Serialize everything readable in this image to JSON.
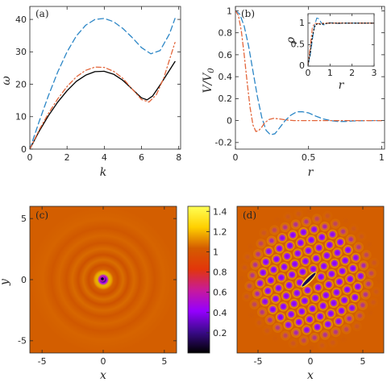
{
  "chart_data": [
    {
      "panel": "(a)",
      "type": "line",
      "xlabel": "k",
      "ylabel": "ω",
      "xlim": [
        0,
        8.1
      ],
      "ylim": [
        0,
        44
      ],
      "xticks": [
        0,
        2,
        4,
        6,
        8
      ],
      "yticks": [
        0,
        10,
        20,
        30,
        40
      ],
      "colors": {
        "black": "#000000",
        "blue": "#2b86c6",
        "orange": "#e3663b"
      },
      "series": [
        {
          "style": "solid",
          "color": "black",
          "x": [
            0,
            0.5,
            1,
            1.5,
            2,
            2.5,
            3,
            3.5,
            4,
            4.5,
            5,
            5.5,
            6,
            6.3,
            6.6,
            7,
            7.5,
            7.8
          ],
          "y": [
            0,
            5.5,
            10.3,
            14.5,
            18,
            20.9,
            22.8,
            23.9,
            24,
            23.1,
            21.2,
            18.5,
            15.8,
            15.2,
            16.4,
            19.8,
            24.3,
            27
          ]
        },
        {
          "style": "dash",
          "color": "blue",
          "x": [
            0,
            0.5,
            1,
            1.5,
            2,
            2.5,
            3,
            3.5,
            4,
            4.5,
            5,
            5.5,
            6,
            6.5,
            7,
            7.5,
            7.8
          ],
          "y": [
            0,
            8.5,
            16.5,
            23.8,
            30,
            34.9,
            38.2,
            40,
            40.3,
            39.3,
            37.2,
            34.4,
            31.3,
            29.4,
            30.4,
            35.5,
            40.3
          ]
        },
        {
          "style": "dashdot",
          "color": "orange",
          "x": [
            0,
            0.5,
            1,
            1.5,
            2,
            2.5,
            3,
            3.5,
            4,
            4.5,
            5,
            5.5,
            6,
            6.4,
            6.8,
            7.2,
            7.5,
            7.8
          ],
          "y": [
            0,
            5.9,
            11,
            15.5,
            19.3,
            22.3,
            24.3,
            25.3,
            25.2,
            24,
            21.8,
            18.5,
            15.3,
            14.5,
            16.8,
            22,
            27.5,
            32.9
          ]
        }
      ]
    },
    {
      "panel": "(b)",
      "type": "line",
      "xlabel": "r",
      "ylabel": "V/V0",
      "ylabel_main": "V/V",
      "ylabel_sub": "0",
      "xlim": [
        0,
        1.02
      ],
      "ylim": [
        -0.26,
        1.04
      ],
      "xticks": [
        0,
        0.5,
        1
      ],
      "yticks": [
        -0.2,
        0,
        0.2,
        0.4,
        0.6,
        0.8,
        1
      ],
      "series": [
        {
          "style": "dash",
          "color": "blue",
          "x": [
            0,
            0.03,
            0.06,
            0.09,
            0.12,
            0.15,
            0.18,
            0.21,
            0.24,
            0.27,
            0.3,
            0.34,
            0.38,
            0.42,
            0.46,
            0.5,
            0.55,
            0.6,
            0.65,
            0.7,
            0.75,
            0.8,
            0.9,
            1.0
          ],
          "y": [
            1,
            0.97,
            0.86,
            0.68,
            0.45,
            0.22,
            0.03,
            -0.09,
            -0.13,
            -0.12,
            -0.07,
            0,
            0.05,
            0.08,
            0.08,
            0.07,
            0.04,
            0.015,
            0,
            -0.008,
            -0.008,
            -0.004,
            0,
            0
          ]
        },
        {
          "style": "dashdot",
          "color": "orange",
          "x": [
            0,
            0.02,
            0.04,
            0.06,
            0.08,
            0.1,
            0.12,
            0.14,
            0.16,
            0.18,
            0.2,
            0.23,
            0.26,
            0.3,
            0.35,
            0.4,
            0.5,
            0.6,
            0.8,
            1.0
          ],
          "y": [
            1,
            0.96,
            0.82,
            0.6,
            0.35,
            0.12,
            -0.04,
            -0.1,
            -0.09,
            -0.06,
            -0.02,
            0.01,
            0.02,
            0.015,
            0.005,
            0,
            0,
            0,
            0,
            0
          ]
        }
      ],
      "inset": {
        "xlabel": "r",
        "ylabel": "ρ",
        "xlim": [
          0,
          3
        ],
        "ylim": [
          0,
          1.22
        ],
        "xticks": [
          0,
          1,
          2,
          3
        ],
        "yticks": [
          0,
          0.5,
          1
        ],
        "series": [
          {
            "style": "dash",
            "color": "blue",
            "x": [
              0,
              0.1,
              0.2,
              0.3,
              0.4,
              0.5,
              0.6,
              0.7,
              0.8,
              0.9,
              1.0,
              1.2,
              1.4,
              1.6,
              1.8,
              2.0,
              2.5,
              3.0
            ],
            "y": [
              0.02,
              0.25,
              0.62,
              0.95,
              1.12,
              1.1,
              1.01,
              0.96,
              0.97,
              1.0,
              1.01,
              1.0,
              0.99,
              1.0,
              1.0,
              1.0,
              1.0,
              1.0
            ]
          },
          {
            "style": "dashdot",
            "color": "orange",
            "x": [
              0,
              0.1,
              0.2,
              0.3,
              0.4,
              0.5,
              0.6,
              0.8,
              1.0,
              1.5,
              2.0,
              3.0
            ],
            "y": [
              0.02,
              0.45,
              0.9,
              1.0,
              0.99,
              0.99,
              1.0,
              1.0,
              1.0,
              1.0,
              1.0,
              1.0
            ]
          },
          {
            "style": "dot",
            "color": "black",
            "x": [
              0,
              0.1,
              0.2,
              0.3,
              0.4,
              0.5,
              0.6,
              0.7,
              0.8,
              1.0,
              1.5,
              2.0,
              3.0
            ],
            "y": [
              0.02,
              0.3,
              0.7,
              0.92,
              0.98,
              0.98,
              0.97,
              0.98,
              0.99,
              1.0,
              1.0,
              1.0,
              1.0
            ]
          }
        ]
      }
    },
    {
      "panel": "(c)",
      "type": "heatmap",
      "xlabel": "x",
      "ylabel": "y",
      "xlim": [
        -6,
        6
      ],
      "ylim": [
        -6,
        6
      ],
      "xticks": [
        -5,
        0,
        5
      ],
      "yticks": [
        -5,
        0,
        5
      ],
      "background_value": 1.0,
      "features": "density hole at origin (value ~0) surrounded by bright ring and faint concentric ripples"
    },
    {
      "panel": "colorbar",
      "type": "colorbar",
      "range": [
        0,
        1.45
      ],
      "ticks": [
        0.2,
        0.4,
        0.6,
        0.8,
        1,
        1.2,
        1.4
      ],
      "colors": [
        "#000000",
        "#3a0a8a",
        "#9500ff",
        "#c81a9a",
        "#e2360a",
        "#d45c00",
        "#ffd000",
        "#ffff55"
      ]
    },
    {
      "panel": "(d)",
      "type": "heatmap",
      "xlabel": "x",
      "ylabel": "",
      "xlim": [
        -7,
        7
      ],
      "ylim": [
        -7,
        7
      ],
      "xticks": [
        -5,
        0,
        5
      ],
      "features": "hexagonal lattice of density minima (~0.6) with bright ridges (~1.2), elongated dark/bright defect along the diagonal near the origin"
    }
  ],
  "labels": {
    "a": "(a)",
    "b": "(b)",
    "c": "(c)",
    "d": "(d)"
  }
}
